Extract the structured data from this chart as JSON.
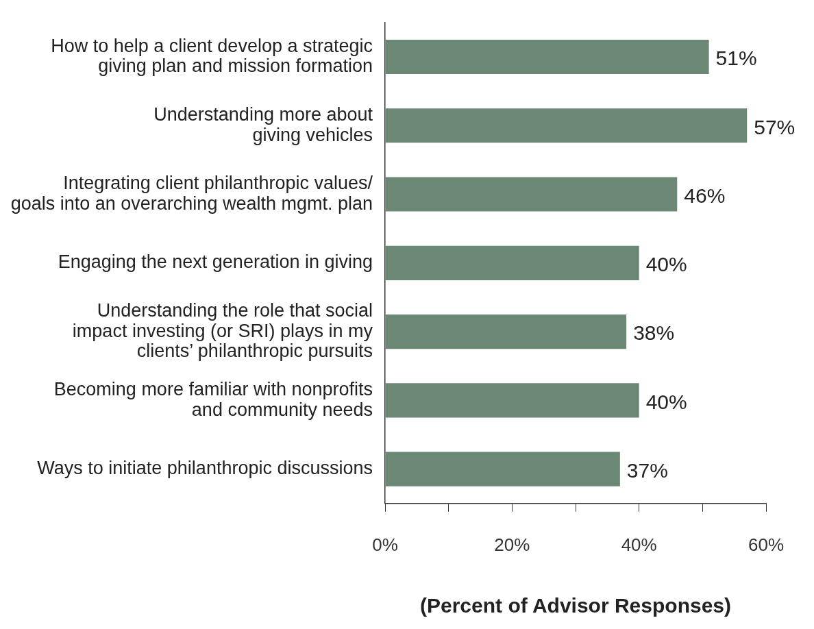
{
  "chart_data": {
    "type": "bar",
    "orientation": "horizontal",
    "categories": [
      "How to help a client develop a strategic\ngiving plan and mission formation",
      "Understanding more about\ngiving vehicles",
      "Integrating client philanthropic values/\ngoals into an overarching wealth mgmt. plan",
      "Engaging the next generation in giving",
      "Understanding the role that social\nimpact investing (or SRI) plays in my\nclients’ philanthropic pursuits",
      "Becoming more familiar with nonprofits\nand community needs",
      "Ways to initiate philanthropic discussions"
    ],
    "values": [
      51,
      57,
      46,
      40,
      38,
      40,
      37
    ],
    "color": "#6b8874",
    "value_labels": [
      "51%",
      "57%",
      "46%",
      "40%",
      "38%",
      "40%",
      "37%"
    ],
    "xlabel": "(Percent of Advisor Responses)",
    "xlim": [
      0,
      60
    ],
    "xticks": [
      {
        "value": 0,
        "label": "0%"
      },
      {
        "value": 10,
        "label": null
      },
      {
        "value": 20,
        "label": "20%"
      },
      {
        "value": 30,
        "label": null
      },
      {
        "value": 40,
        "label": "40%"
      },
      {
        "value": 50,
        "label": null
      },
      {
        "value": 60,
        "label": "60%"
      }
    ],
    "grid": false,
    "legend": false
  }
}
